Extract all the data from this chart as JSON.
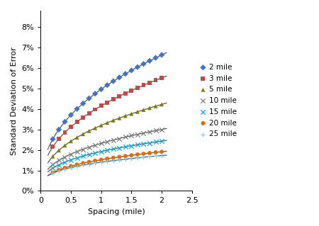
{
  "series": [
    {
      "label": "2 mile",
      "color": "#4472C4",
      "marker": "D",
      "marker_size": 18,
      "a": 0.0496,
      "b": 0.42
    },
    {
      "label": "3 mile",
      "color": "#BE4B48",
      "marker": "s",
      "marker_size": 18,
      "a": 0.0415,
      "b": 0.41
    },
    {
      "label": "5 mile",
      "color": "#7D7D00",
      "marker": "^",
      "marker_size": 18,
      "a": 0.032,
      "b": 0.4
    },
    {
      "label": "10 mile",
      "color": "#808080",
      "marker": "x",
      "marker_size": 22,
      "a": 0.0232,
      "b": 0.37
    },
    {
      "label": "15 mile",
      "color": "#00B0F0",
      "marker": "x",
      "marker_size": 22,
      "a": 0.0192,
      "b": 0.34
    },
    {
      "label": "20 mile",
      "color": "#E36C09",
      "marker": "o",
      "marker_size": 18,
      "a": 0.0152,
      "b": 0.33
    },
    {
      "label": "25 mile",
      "color": "#92CDDC",
      "marker": "+",
      "marker_size": 22,
      "a": 0.014,
      "b": 0.3
    }
  ],
  "x_spacing": [
    0.2,
    0.3,
    0.4,
    0.5,
    0.6,
    0.7,
    0.8,
    0.9,
    1.0,
    1.1,
    1.2,
    1.3,
    1.4,
    1.5,
    1.6,
    1.7,
    1.8,
    1.9,
    2.0
  ],
  "xlabel": "Spacing (mile)",
  "ylabel": "Standard Deviation of Error",
  "xlim": [
    0,
    2.5
  ],
  "ylim": [
    0,
    0.088
  ],
  "xticks": [
    0,
    0.5,
    1.0,
    1.5,
    2.0,
    2.5
  ],
  "yticks": [
    0,
    0.01,
    0.02,
    0.03,
    0.04,
    0.05,
    0.06,
    0.07,
    0.08
  ],
  "ytick_labels": [
    "0%",
    "1%",
    "2%",
    "3%",
    "4%",
    "5%",
    "6%",
    "7%",
    "8%"
  ],
  "xtick_labels": [
    "0",
    "0.5",
    "1",
    "1.5",
    "2",
    "2.5"
  ],
  "line_color": "#595959",
  "background_color": "#FFFFFF",
  "axis_fontsize": 8,
  "tick_fontsize": 8,
  "legend_fontsize": 7.5
}
